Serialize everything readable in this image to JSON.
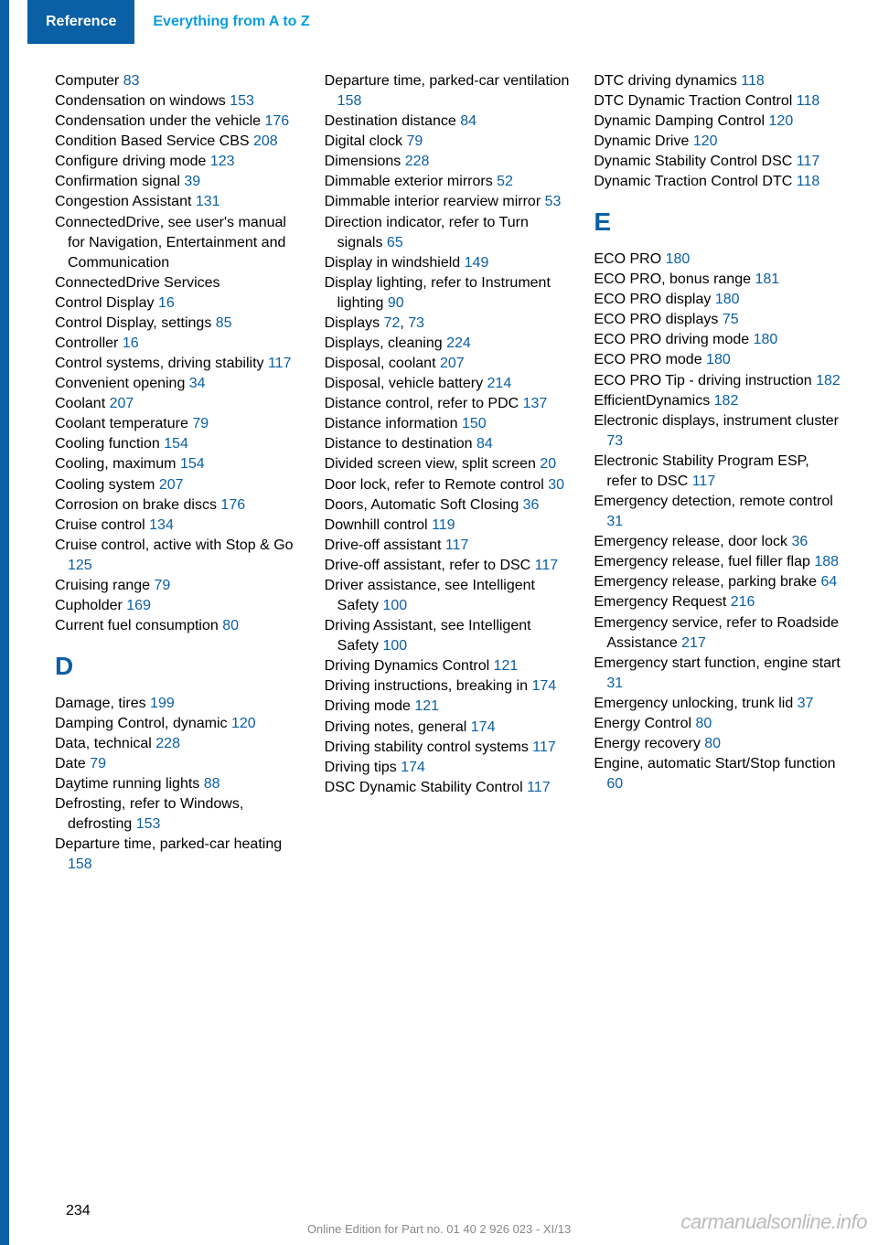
{
  "header": {
    "ref": "Reference",
    "title": "Everything from A to Z"
  },
  "columns": {
    "col1": {
      "entries": [
        {
          "t": "Computer ",
          "p": "83"
        },
        {
          "t": "Condensation on win­dows ",
          "p": "153"
        },
        {
          "t": "Condensation under the vehi­cle ",
          "p": "176"
        },
        {
          "t": "Condition Based Service CBS ",
          "p": "208"
        },
        {
          "t": "Configure driving mode ",
          "p": "123"
        },
        {
          "t": "Confirmation signal ",
          "p": "39"
        },
        {
          "t": "Congestion Assistant ",
          "p": "131"
        },
        {
          "t": "ConnectedDrive, see user's manual for Navigation, En­tertainment and Communi­cation",
          "p": ""
        },
        {
          "t": "ConnectedDrive Services",
          "p": ""
        },
        {
          "t": "Control Display ",
          "p": "16"
        },
        {
          "t": "Control Display, settings ",
          "p": "85"
        },
        {
          "t": "Controller ",
          "p": "16"
        },
        {
          "t": "Control systems, driving sta­bility ",
          "p": "117"
        },
        {
          "t": "Convenient opening ",
          "p": "34"
        },
        {
          "t": "Coolant ",
          "p": "207"
        },
        {
          "t": "Coolant temperature ",
          "p": "79"
        },
        {
          "t": "Cooling function ",
          "p": "154"
        },
        {
          "t": "Cooling, maximum ",
          "p": "154"
        },
        {
          "t": "Cooling system ",
          "p": "207"
        },
        {
          "t": "Corrosion on brake discs ",
          "p": "176"
        },
        {
          "t": "Cruise control ",
          "p": "134"
        },
        {
          "t": "Cruise control, active with Stop & Go ",
          "p": "125"
        },
        {
          "t": "Cruising range ",
          "p": "79"
        },
        {
          "t": "Cupholder ",
          "p": "169"
        },
        {
          "t": "Current fuel consumption ",
          "p": "80"
        }
      ],
      "letter_d": "D",
      "entries_d": [
        {
          "t": "Damage, tires ",
          "p": "199"
        },
        {
          "t": "Damping Control, dy­namic ",
          "p": "120"
        },
        {
          "t": "Data, technical ",
          "p": "228"
        },
        {
          "t": "Date ",
          "p": "79"
        },
        {
          "t": "Daytime running lights ",
          "p": "88"
        },
        {
          "t": "Defrosting, refer to Windows, defrosting ",
          "p": "153"
        },
        {
          "t": "Departure time, parked-car heating ",
          "p": "158"
        }
      ]
    },
    "col2": {
      "entries": [
        {
          "t": "Departure time, parked-car ventilation ",
          "p": "158"
        },
        {
          "t": "Destination distance ",
          "p": "84"
        },
        {
          "t": "Digital clock ",
          "p": "79"
        },
        {
          "t": "Dimensions ",
          "p": "228"
        },
        {
          "t": "Dimmable exterior mirrors ",
          "p": "52"
        },
        {
          "t": "Dimmable interior rearview mirror ",
          "p": "53"
        },
        {
          "t": "Direction indicator, refer to Turn signals ",
          "p": "65"
        },
        {
          "t": "Display in windshield ",
          "p": "149"
        },
        {
          "t": "Display lighting, refer to In­strument lighting ",
          "p": "90"
        },
        {
          "t": "Displays ",
          "p": "72",
          "p2": "73"
        },
        {
          "t": "Displays, cleaning ",
          "p": "224"
        },
        {
          "t": "Disposal, coolant ",
          "p": "207"
        },
        {
          "t": "Disposal, vehicle battery ",
          "p": "214"
        },
        {
          "t": "Distance control, refer to PDC ",
          "p": "137"
        },
        {
          "t": "Distance information ",
          "p": "150"
        },
        {
          "t": "Distance to destination ",
          "p": "84"
        },
        {
          "t": "Divided screen view, split screen ",
          "p": "20"
        },
        {
          "t": "Door lock, refer to Remote control ",
          "p": "30"
        },
        {
          "t": "Doors, Automatic Soft Clos­ing ",
          "p": "36"
        },
        {
          "t": "Downhill control ",
          "p": "119"
        },
        {
          "t": "Drive-off assistant ",
          "p": "117"
        },
        {
          "t": "Drive-off assistant, refer to DSC ",
          "p": "117"
        },
        {
          "t": "Driver assistance, see Intelli­gent Safety ",
          "p": "100"
        },
        {
          "t": "Driving Assistant, see Intelli­gent Safety ",
          "p": "100"
        },
        {
          "t": "Driving Dynamics Con­trol ",
          "p": "121"
        },
        {
          "t": "Driving instructions, breaking in ",
          "p": "174"
        },
        {
          "t": "Driving mode ",
          "p": "121"
        },
        {
          "t": "Driving notes, general ",
          "p": "174"
        },
        {
          "t": "Driving stability control sys­tems ",
          "p": "117"
        },
        {
          "t": "Driving tips ",
          "p": "174"
        },
        {
          "t": "DSC Dynamic Stability Con­trol ",
          "p": "117"
        }
      ]
    },
    "col3": {
      "entries": [
        {
          "t": "DTC driving dynamics ",
          "p": "118"
        },
        {
          "t": "DTC Dynamic Traction Con­trol ",
          "p": "118"
        },
        {
          "t": "Dynamic Damping Con­trol ",
          "p": "120"
        },
        {
          "t": "Dynamic Drive ",
          "p": "120"
        },
        {
          "t": "Dynamic Stability Control DSC ",
          "p": "117"
        },
        {
          "t": "Dynamic Traction Control DTC ",
          "p": "118"
        }
      ],
      "letter_e": "E",
      "entries_e": [
        {
          "t": "ECO PRO ",
          "p": "180"
        },
        {
          "t": "ECO PRO, bonus range ",
          "p": "181"
        },
        {
          "t": "ECO PRO display ",
          "p": "180"
        },
        {
          "t": "ECO PRO displays ",
          "p": "75"
        },
        {
          "t": "ECO PRO driving mode ",
          "p": "180"
        },
        {
          "t": "ECO PRO mode ",
          "p": "180"
        },
        {
          "t": "ECO PRO Tip - driving in­struction ",
          "p": "182"
        },
        {
          "t": "EfficientDynamics ",
          "p": "182"
        },
        {
          "t": "Electronic displays, instru­ment cluster ",
          "p": "73"
        },
        {
          "t": "Electronic Stability Program ESP, refer to DSC ",
          "p": "117"
        },
        {
          "t": "Emergency detection, remote control ",
          "p": "31"
        },
        {
          "t": "Emergency release, door lock ",
          "p": "36"
        },
        {
          "t": "Emergency release, fuel filler flap ",
          "p": "188"
        },
        {
          "t": "Emergency release, parking brake ",
          "p": "64"
        },
        {
          "t": "Emergency Request ",
          "p": "216"
        },
        {
          "t": "Emergency service, refer to Roadside Assistance ",
          "p": "217"
        },
        {
          "t": "Emergency start function, en­gine start ",
          "p": "31"
        },
        {
          "t": "Emergency unlocking, trunk lid ",
          "p": "37"
        },
        {
          "t": "Energy Control ",
          "p": "80"
        },
        {
          "t": "Energy recovery ",
          "p": "80"
        },
        {
          "t": "Engine, automatic Start/Stop function ",
          "p": "60"
        }
      ]
    }
  },
  "page_num": "234",
  "footer": "Online Edition for Part no. 01 40 2 926 023 - XI/13",
  "watermark": "carmanualsonline.info"
}
